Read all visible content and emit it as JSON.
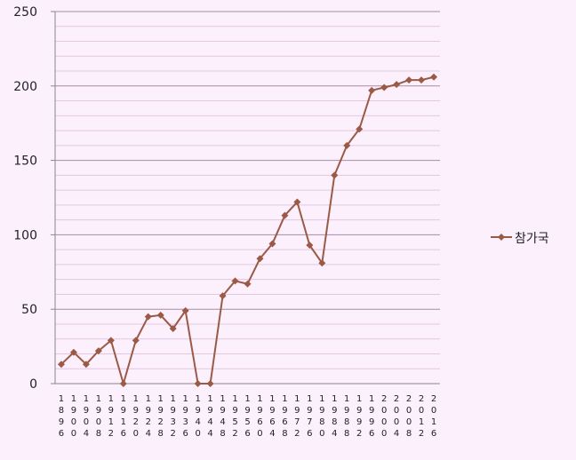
{
  "chart_data": {
    "type": "line",
    "categories": [
      "1896",
      "1900",
      "1904",
      "1908",
      "1912",
      "1916",
      "1920",
      "1924",
      "1928",
      "1932",
      "1936",
      "1940",
      "1944",
      "1948",
      "1952",
      "1956",
      "1960",
      "1964",
      "1968",
      "1972",
      "1976",
      "1980",
      "1984",
      "1988",
      "1992",
      "1996",
      "2000",
      "2004",
      "2008",
      "2012",
      "2016"
    ],
    "series": [
      {
        "name": "참가국",
        "color": "#9a5a45",
        "values": [
          13,
          21,
          13,
          22,
          29,
          0,
          29,
          45,
          46,
          37,
          49,
          0,
          0,
          59,
          69,
          67,
          84,
          94,
          113,
          122,
          93,
          81,
          140,
          160,
          171,
          197,
          199,
          201,
          204,
          204,
          206
        ]
      }
    ],
    "ylim": [
      0,
      250
    ],
    "yticks": [
      0,
      50,
      100,
      150,
      200,
      250
    ],
    "minor_yticks": [
      10,
      20,
      30,
      40,
      60,
      70,
      80,
      90,
      110,
      120,
      130,
      140,
      160,
      170,
      180,
      190,
      210,
      220,
      230,
      240
    ],
    "grid": true,
    "legend": "right"
  }
}
